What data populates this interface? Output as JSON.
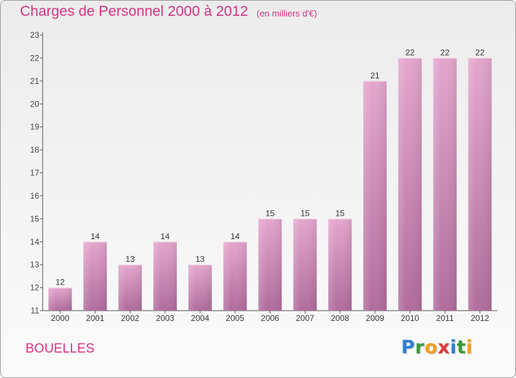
{
  "header": {
    "title": "Charges de Personnel 2000 à 2012",
    "subtitle": "(en milliers d'€)"
  },
  "footer": {
    "commune": "BOUELLES",
    "logo_text": "Proxiti"
  },
  "colors": {
    "title": "#d63384",
    "bar_top": "#e4a6cd",
    "bar_bottom": "#b06c9c",
    "axis": "#555555"
  },
  "chart_data": {
    "type": "bar",
    "title": "Charges de Personnel 2000 à 2012",
    "subtitle": "(en milliers d'€)",
    "xlabel": "",
    "ylabel": "",
    "categories": [
      "2000",
      "2001",
      "2002",
      "2003",
      "2004",
      "2005",
      "2006",
      "2007",
      "2008",
      "2009",
      "2010",
      "2011",
      "2012"
    ],
    "values": [
      12,
      14,
      13,
      14,
      13,
      14,
      15,
      15,
      15,
      21,
      22,
      22,
      22
    ],
    "ylim": [
      11,
      23
    ],
    "yticks": [
      11,
      12,
      13,
      14,
      15,
      16,
      17,
      18,
      19,
      20,
      21,
      22,
      23
    ],
    "grid": false,
    "legend": "none"
  }
}
